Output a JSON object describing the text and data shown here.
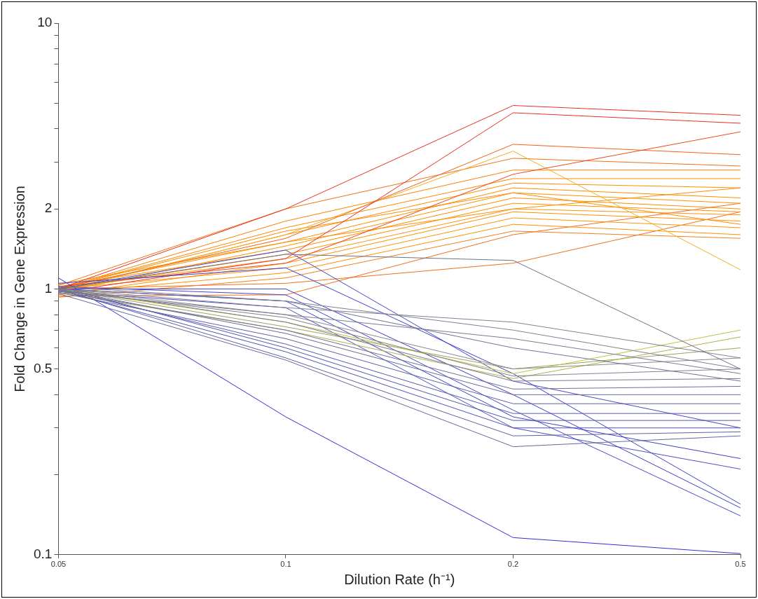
{
  "chart_data": {
    "type": "line",
    "xlabel": "Dilution Rate (h⁻¹)",
    "ylabel": "Fold Change in Gene Expression",
    "categories": [
      "0.05",
      "0.1",
      "0.2",
      "0.5"
    ],
    "log": "y",
    "ylim": [
      0.1,
      10
    ],
    "yticks": [
      0.1,
      {
        "value": 0.2,
        "label": null
      },
      {
        "value": 0.3,
        "label": null
      },
      {
        "value": 0.4,
        "label": null
      },
      0.5,
      {
        "value": 0.6,
        "label": null
      },
      {
        "value": 0.7,
        "label": null
      },
      {
        "value": 0.8,
        "label": null
      },
      {
        "value": 0.9,
        "label": null
      },
      1,
      2,
      {
        "value": 3,
        "label": null
      },
      {
        "value": 4,
        "label": null
      },
      {
        "value": 5,
        "label": null
      },
      {
        "value": 6,
        "label": null
      },
      {
        "value": 7,
        "label": null
      },
      {
        "value": 8,
        "label": null
      },
      {
        "value": 9,
        "label": null
      },
      10
    ],
    "grid": false,
    "legend": false,
    "marker": "none",
    "line_style": "solid",
    "series": [
      {
        "color": "#707088",
        "values": [
          1.0,
          1.35,
          1.28,
          0.5
        ]
      },
      {
        "color": "#808090",
        "values": [
          1.0,
          0.85,
          0.75,
          0.55
        ]
      },
      {
        "color": "#808090",
        "values": [
          1.02,
          0.9,
          0.7,
          0.5
        ]
      },
      {
        "color": "#7a7a96",
        "values": [
          0.98,
          0.8,
          0.65,
          0.48
        ]
      },
      {
        "color": "#888888",
        "values": [
          1.0,
          0.8,
          0.5,
          0.55
        ]
      },
      {
        "color": "#808088",
        "values": [
          0.99,
          0.78,
          0.47,
          0.5
        ]
      },
      {
        "color": "#787890",
        "values": [
          1.01,
          0.75,
          0.45,
          0.46
        ]
      },
      {
        "color": "#70709a",
        "values": [
          0.98,
          0.7,
          0.42,
          0.43
        ]
      },
      {
        "color": "#6a6aa0",
        "values": [
          1.0,
          0.68,
          0.4,
          0.4
        ]
      },
      {
        "color": "#6060a8",
        "values": [
          0.97,
          0.65,
          0.37,
          0.37
        ]
      },
      {
        "color": "#5a5ab0",
        "values": [
          1.0,
          0.62,
          0.34,
          0.34
        ]
      },
      {
        "color": "#5555b0",
        "values": [
          1.02,
          0.6,
          0.32,
          0.32
        ]
      },
      {
        "color": "#5050b8",
        "values": [
          0.99,
          0.58,
          0.3,
          0.3
        ]
      },
      {
        "color": "#6060a0",
        "values": [
          1.0,
          0.55,
          0.28,
          0.29
        ]
      },
      {
        "color": "#6868a0",
        "values": [
          0.96,
          0.54,
          0.255,
          0.28
        ]
      },
      {
        "color": "#707098",
        "values": [
          1.0,
          0.9,
          0.6,
          0.45
        ]
      },
      {
        "color": "#c0c040",
        "values": [
          1.0,
          0.75,
          0.48,
          0.7
        ]
      },
      {
        "color": "#b0b048",
        "values": [
          0.97,
          0.7,
          0.46,
          0.66
        ]
      },
      {
        "color": "#a0a060",
        "values": [
          1.0,
          0.72,
          0.5,
          0.6
        ]
      },
      {
        "color": "#4040d0",
        "values": [
          1.05,
          1.2,
          0.48,
          0.155
        ]
      },
      {
        "color": "#3c3cd0",
        "values": [
          1.0,
          1.0,
          0.4,
          0.15
        ]
      },
      {
        "color": "#4848c8",
        "values": [
          1.02,
          0.95,
          0.35,
          0.14
        ]
      },
      {
        "color": "#4040c8",
        "values": [
          1.0,
          0.9,
          0.33,
          0.23
        ]
      },
      {
        "color": "#5050c0",
        "values": [
          0.98,
          0.85,
          0.3,
          0.21
        ]
      },
      {
        "color": "#4848c8",
        "values": [
          1.0,
          1.4,
          0.45,
          0.3
        ]
      },
      {
        "color": "#3030d8",
        "values": [
          1.1,
          0.33,
          0.116,
          0.101
        ]
      },
      {
        "color": "#e83020",
        "values": [
          1.0,
          2.0,
          4.9,
          4.5
        ]
      },
      {
        "color": "#e83020",
        "values": [
          0.97,
          1.3,
          4.6,
          4.2
        ]
      },
      {
        "color": "#ec4a1c",
        "values": [
          1.02,
          1.25,
          2.7,
          3.9
        ]
      },
      {
        "color": "#f06018",
        "values": [
          1.0,
          1.55,
          3.5,
          3.2
        ]
      },
      {
        "color": "#f0b020",
        "values": [
          0.98,
          1.6,
          3.3,
          1.18
        ]
      },
      {
        "color": "#f57010",
        "values": [
          1.03,
          2.0,
          3.1,
          2.9
        ]
      },
      {
        "color": "#ff8000",
        "values": [
          1.0,
          1.8,
          2.8,
          2.8
        ]
      },
      {
        "color": "#ff8800",
        "values": [
          1.0,
          1.7,
          2.6,
          2.6
        ]
      },
      {
        "color": "#ff8c00",
        "values": [
          0.98,
          1.6,
          2.5,
          2.4
        ]
      },
      {
        "color": "#ff8c00",
        "values": [
          1.01,
          1.5,
          2.4,
          2.2
        ]
      },
      {
        "color": "#ff9000",
        "values": [
          0.97,
          1.45,
          2.3,
          2.1
        ]
      },
      {
        "color": "#ff8c00",
        "values": [
          1.02,
          1.4,
          2.2,
          2.0
        ]
      },
      {
        "color": "#ff9000",
        "values": [
          0.99,
          1.35,
          2.1,
          1.95
        ]
      },
      {
        "color": "#ff9410",
        "values": [
          1.0,
          1.3,
          2.0,
          1.9
        ]
      },
      {
        "color": "#ff9000",
        "values": [
          0.95,
          1.25,
          1.95,
          1.8
        ]
      },
      {
        "color": "#ff9410",
        "values": [
          1.0,
          1.2,
          1.85,
          1.7
        ]
      },
      {
        "color": "#ff9000",
        "values": [
          0.96,
          1.15,
          1.75,
          1.6
        ]
      },
      {
        "color": "#f08020",
        "values": [
          0.93,
          1.1,
          1.65,
          1.55
        ]
      },
      {
        "color": "#f07020",
        "values": [
          1.0,
          1.05,
          1.25,
          1.95
        ]
      },
      {
        "color": "#f07020",
        "values": [
          0.94,
          0.95,
          1.6,
          2.1
        ]
      },
      {
        "color": "#ff9000",
        "values": [
          1.04,
          1.5,
          2.0,
          2.4
        ]
      },
      {
        "color": "#ff8c00",
        "values": [
          1.0,
          1.65,
          2.3,
          1.75
        ]
      }
    ]
  }
}
